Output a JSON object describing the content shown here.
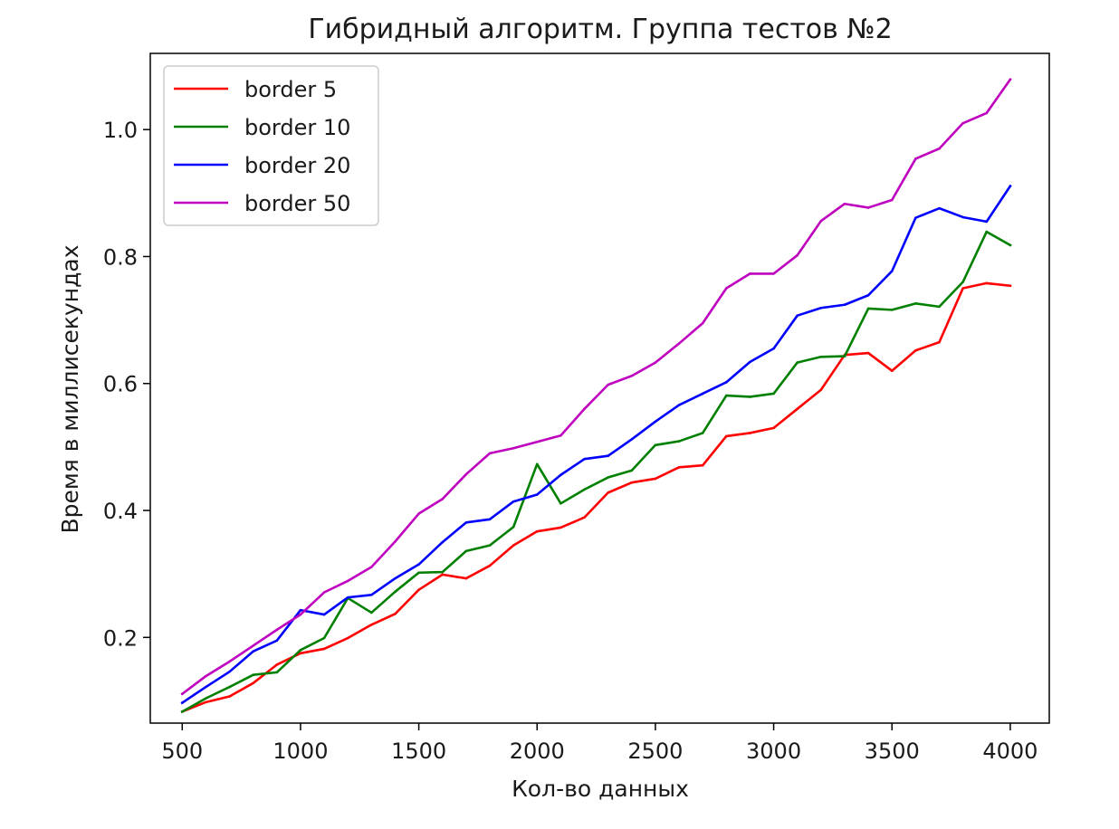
{
  "chart_data": {
    "type": "line",
    "title": "Гибридный алгоритм. Группа тестов №2",
    "xlabel": "Кол-во данных",
    "ylabel": "Время в миллисекундах",
    "xlim": [
      365,
      4165
    ],
    "ylim": [
      0.065,
      1.12
    ],
    "xticks": [
      500,
      1000,
      1500,
      2000,
      2500,
      3000,
      3500,
      4000
    ],
    "xtick_labels": [
      "500",
      "1000",
      "1500",
      "2000",
      "2500",
      "3000",
      "3500",
      "4000"
    ],
    "yticks": [
      0.2,
      0.4,
      0.6,
      0.8,
      1.0
    ],
    "ytick_labels": [
      "0.2",
      "0.4",
      "0.6",
      "0.8",
      "1.0"
    ],
    "grid": false,
    "legend_position": "top-left",
    "x": [
      500,
      600,
      700,
      800,
      900,
      1000,
      1100,
      1200,
      1300,
      1400,
      1500,
      1600,
      1700,
      1800,
      1900,
      2000,
      2100,
      2200,
      2300,
      2400,
      2500,
      2600,
      2700,
      2800,
      2900,
      3000,
      3100,
      3200,
      3300,
      3400,
      3500,
      3600,
      3700,
      3800,
      3900,
      4000
    ],
    "series": [
      {
        "name": "border 5",
        "color": "#ff0000",
        "values": [
          0.083,
          0.098,
          0.107,
          0.128,
          0.157,
          0.175,
          0.182,
          0.199,
          0.22,
          0.237,
          0.275,
          0.299,
          0.293,
          0.313,
          0.345,
          0.367,
          0.373,
          0.389,
          0.428,
          0.444,
          0.45,
          0.468,
          0.471,
          0.517,
          0.522,
          0.53,
          0.56,
          0.59,
          0.645,
          0.648,
          0.62,
          0.652,
          0.665,
          0.75,
          0.758,
          0.754
        ]
      },
      {
        "name": "border 10",
        "color": "#008000",
        "values": [
          0.083,
          0.104,
          0.122,
          0.141,
          0.145,
          0.18,
          0.199,
          0.262,
          0.239,
          0.272,
          0.302,
          0.303,
          0.336,
          0.345,
          0.374,
          0.473,
          0.411,
          0.433,
          0.452,
          0.463,
          0.503,
          0.509,
          0.522,
          0.581,
          0.579,
          0.584,
          0.633,
          0.642,
          0.643,
          0.718,
          0.716,
          0.726,
          0.721,
          0.76,
          0.839,
          0.818
        ]
      },
      {
        "name": "border 20",
        "color": "#0000ff",
        "values": [
          0.097,
          0.122,
          0.146,
          0.178,
          0.195,
          0.243,
          0.236,
          0.263,
          0.267,
          0.293,
          0.315,
          0.35,
          0.381,
          0.386,
          0.414,
          0.425,
          0.456,
          0.481,
          0.486,
          0.512,
          0.54,
          0.566,
          0.584,
          0.602,
          0.634,
          0.655,
          0.707,
          0.719,
          0.724,
          0.739,
          0.777,
          0.861,
          0.876,
          0.862,
          0.855,
          0.911
        ]
      },
      {
        "name": "border 50",
        "color": "#bf00bf",
        "values": [
          0.111,
          0.139,
          0.162,
          0.187,
          0.212,
          0.236,
          0.271,
          0.289,
          0.311,
          0.351,
          0.395,
          0.418,
          0.457,
          0.49,
          0.498,
          0.508,
          0.518,
          0.56,
          0.598,
          0.612,
          0.633,
          0.663,
          0.695,
          0.75,
          0.773,
          0.773,
          0.802,
          0.856,
          0.883,
          0.877,
          0.889,
          0.954,
          0.97,
          1.01,
          1.026,
          1.079
        ]
      }
    ]
  }
}
